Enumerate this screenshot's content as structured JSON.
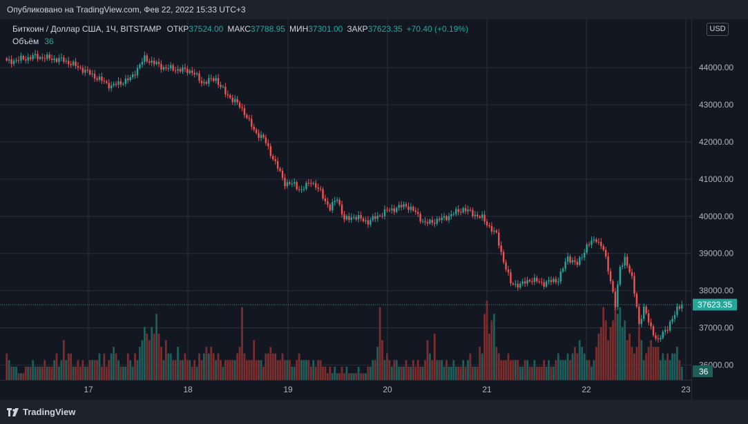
{
  "header": {
    "published": "Опубликовано на TradingView.com, Фев 22, 2022 15:33 UTC+3"
  },
  "legend": {
    "symbol": "Биткоин / Доллар США, 1Ч, BITSTAMP",
    "open_label": "ОТКР",
    "open_value": "37524.00",
    "high_label": "МАКС",
    "high_value": "37788.95",
    "low_label": "МИН",
    "low_value": "37301.00",
    "close_label": "ЗАКР",
    "close_value": "37623.35",
    "change": "+70.40 (+0.19%)",
    "volume_label": "Объём",
    "volume_value": "36"
  },
  "currency_badge": "USD",
  "footer": {
    "brand": "TradingView"
  },
  "colors": {
    "up": "#26a69a",
    "down": "#ef5350",
    "up_volume": "#1f5f5b",
    "down_volume": "#7a2e2e",
    "background": "#131722",
    "grid": "#2a2e39"
  },
  "chart_data": {
    "type": "candlestick",
    "x_tick_labels": [
      "17",
      "18",
      "19",
      "20",
      "21",
      "22",
      "23"
    ],
    "y_tick_labels": [
      "36000.00",
      "37000.00",
      "38000.00",
      "39000.00",
      "40000.00",
      "41000.00",
      "42000.00",
      "43000.00",
      "44000.00"
    ],
    "y_range": [
      35600,
      45300
    ],
    "last_price": 37623.35,
    "last_price_label": "37623.35",
    "last_volume_label": "36",
    "grid": true,
    "close_path": [
      [
        0,
        44150
      ],
      [
        12,
        44300
      ],
      [
        24,
        44200
      ],
      [
        32,
        43950
      ],
      [
        44,
        43500
      ],
      [
        52,
        43700
      ],
      [
        58,
        44250
      ],
      [
        66,
        44000
      ],
      [
        78,
        43900
      ],
      [
        82,
        43600
      ],
      [
        88,
        43700
      ],
      [
        92,
        43300
      ],
      [
        96,
        43100
      ],
      [
        100,
        42800
      ],
      [
        104,
        42300
      ],
      [
        108,
        42100
      ],
      [
        111,
        41700
      ],
      [
        114,
        41300
      ],
      [
        117,
        40900
      ],
      [
        121,
        40850
      ],
      [
        124,
        40700
      ],
      [
        128,
        40950
      ],
      [
        132,
        40650
      ],
      [
        136,
        40200
      ],
      [
        139,
        40500
      ],
      [
        142,
        39900
      ],
      [
        146,
        40000
      ],
      [
        152,
        39850
      ],
      [
        160,
        40150
      ],
      [
        168,
        40300
      ],
      [
        172,
        40100
      ],
      [
        176,
        39800
      ],
      [
        184,
        39950
      ],
      [
        192,
        40200
      ],
      [
        200,
        39950
      ],
      [
        206,
        39500
      ],
      [
        209,
        38800
      ],
      [
        212,
        38200
      ],
      [
        216,
        38150
      ],
      [
        220,
        38300
      ],
      [
        226,
        38200
      ],
      [
        232,
        38300
      ],
      [
        236,
        38900
      ],
      [
        240,
        38700
      ],
      [
        244,
        39200
      ],
      [
        248,
        39400
      ],
      [
        251,
        39100
      ],
      [
        254,
        38300
      ],
      [
        256,
        37600
      ],
      [
        258,
        38600
      ],
      [
        260,
        38900
      ],
      [
        263,
        38300
      ],
      [
        265,
        37600
      ],
      [
        266,
        37100
      ],
      [
        268,
        37500
      ],
      [
        270,
        37200
      ],
      [
        272,
        36850
      ],
      [
        274,
        36600
      ],
      [
        276,
        36900
      ],
      [
        278,
        37000
      ],
      [
        280,
        37200
      ],
      [
        282,
        37550
      ],
      [
        284,
        37623.35
      ]
    ],
    "volume": [
      4,
      3,
      2,
      2,
      2,
      1,
      1,
      1,
      2,
      2,
      2,
      3,
      2,
      2,
      2,
      2,
      3,
      2,
      2,
      2,
      3,
      4,
      2,
      3,
      6,
      3,
      4,
      4,
      2,
      2,
      3,
      2,
      3,
      2,
      2,
      3,
      3,
      3,
      3,
      4,
      2,
      4,
      2,
      3,
      4,
      5,
      4,
      3,
      2,
      2,
      2,
      4,
      3,
      2,
      4,
      3,
      5,
      6,
      8,
      7,
      6,
      8,
      7,
      10,
      7,
      5,
      3,
      6,
      4,
      4,
      3,
      3,
      5,
      3,
      3,
      4,
      3,
      3,
      2,
      3,
      2,
      4,
      3,
      4,
      5,
      4,
      5,
      4,
      3,
      4,
      3,
      2,
      3,
      3,
      3,
      3,
      3,
      4,
      5,
      11,
      4,
      3,
      3,
      3,
      6,
      3,
      3,
      3,
      2,
      4,
      4,
      5,
      4,
      4,
      3,
      3,
      4,
      3,
      3,
      3,
      2,
      2,
      3,
      4,
      3,
      3,
      3,
      3,
      2,
      3,
      2,
      3,
      3,
      2,
      2,
      1,
      2,
      1,
      2,
      1,
      1,
      2,
      1,
      2,
      1,
      1,
      1,
      1,
      2,
      1,
      1,
      1,
      2,
      2,
      3,
      3,
      5,
      11,
      6,
      3,
      4,
      3,
      2,
      3,
      3,
      2,
      2,
      2,
      3,
      2,
      2,
      3,
      2,
      3,
      2,
      2,
      3,
      6,
      4,
      3,
      7,
      3,
      3,
      3,
      2,
      3,
      2,
      2,
      3,
      2,
      2,
      2,
      3,
      2,
      3,
      4,
      2,
      2,
      2,
      5,
      4,
      10,
      12,
      7,
      9,
      10,
      5,
      4,
      3,
      3,
      3,
      4,
      3,
      3,
      3,
      3,
      2,
      2,
      3,
      3,
      2,
      2,
      3,
      2,
      2,
      2,
      3,
      2,
      3,
      2,
      2,
      3,
      4,
      3,
      3,
      3,
      4,
      3,
      4,
      5,
      4,
      6,
      5,
      4,
      3,
      3,
      2,
      3,
      5,
      7,
      8,
      11,
      9,
      6,
      8,
      9,
      12,
      10,
      11,
      8,
      9,
      6,
      7,
      5,
      4,
      5,
      8,
      6,
      3,
      4,
      5,
      6,
      5,
      5,
      5,
      3,
      4,
      3,
      4,
      3,
      4,
      4,
      5,
      3,
      2,
      5
    ]
  }
}
